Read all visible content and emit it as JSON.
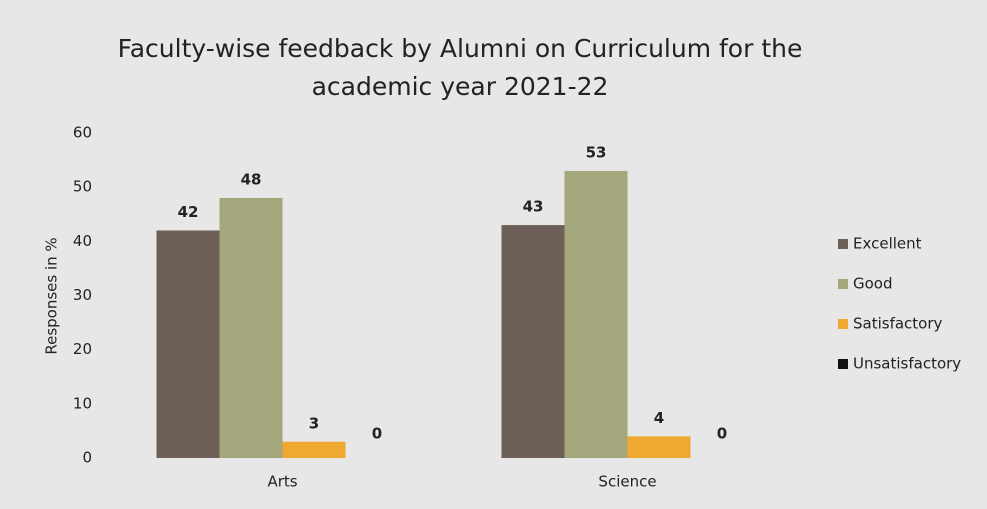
{
  "chart_data": {
    "type": "bar",
    "title": "Faculty-wise feedback  by Alumni on Curriculum for the academic year 2021-22",
    "ylabel": "Responses in %",
    "categories": [
      "Arts",
      "Science"
    ],
    "series": [
      {
        "name": "Excellent",
        "color": "#6b5f57",
        "values": [
          42,
          43
        ]
      },
      {
        "name": "Good",
        "color": "#a4a67b",
        "values": [
          48,
          53
        ]
      },
      {
        "name": "Satisfactory",
        "color": "#f0a930",
        "values": [
          3,
          4
        ]
      },
      {
        "name": "Unsatisfactory",
        "color": "#111111",
        "values": [
          0,
          0
        ]
      }
    ],
    "ylim": [
      0,
      60
    ],
    "yticks": [
      0,
      10,
      20,
      30,
      40,
      50,
      60
    ],
    "grid": false,
    "legend": "right"
  }
}
